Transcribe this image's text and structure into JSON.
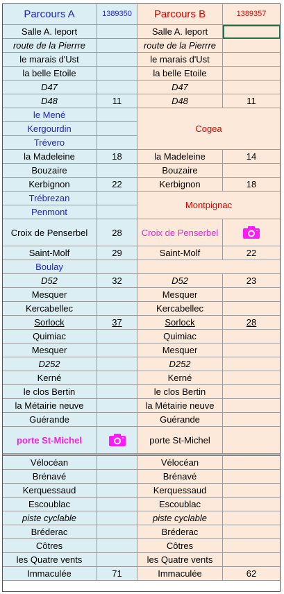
{
  "title": "Parcours A / Parcours B",
  "colors": {
    "parcours_a_bg": "#dbeef4",
    "parcours_b_bg": "#fde9d9",
    "blue_text": "#1f25c8",
    "red_text": "#e00000",
    "magenta_text": "#ee22dd",
    "camera_icon": "#ff1aff"
  },
  "header": {
    "a_title": "Parcours A",
    "a_id": "1389350",
    "b_title": "Parcours B",
    "b_id": "1389357"
  },
  "rows": [
    {
      "a_name": "Salle A. leport",
      "a_km": "",
      "b_name": "Salle A. leport",
      "b_km": "",
      "b_selected": true
    },
    {
      "a_name": "route de la Pierrre",
      "a_km": "",
      "b_name": "route de la Pierrre",
      "b_km": "",
      "italic": true
    },
    {
      "a_name": "le marais d'Ust",
      "a_km": "",
      "b_name": "le marais d'Ust",
      "b_km": ""
    },
    {
      "a_name": "la belle Etoile",
      "a_km": "",
      "b_name": "la belle Etoile",
      "b_km": ""
    },
    {
      "a_name": "D47",
      "a_km": "",
      "b_name": "D47",
      "b_km": "",
      "italic": true
    },
    {
      "a_name": "D48",
      "a_km": "11",
      "b_name": "D48",
      "b_km": "11",
      "italic": true
    },
    {
      "a_name": "le Mené",
      "a_km": "",
      "a_style": "blue"
    },
    {
      "a_name": "Kergourdin",
      "a_km": "",
      "a_style": "blue"
    },
    {
      "a_name": "Trévero",
      "a_km": "",
      "a_style": "blue"
    },
    {
      "a_name": "la Madeleine",
      "a_km": "18",
      "b_name": "la Madeleine",
      "b_km": "14"
    },
    {
      "a_name": "Bouzaire",
      "a_km": "",
      "b_name": "Bouzaire",
      "b_km": ""
    },
    {
      "a_name": "Kerbignon",
      "a_km": "22",
      "b_name": "Kerbignon",
      "b_km": "18"
    },
    {
      "a_name": "Trébrezan",
      "a_km": "",
      "a_style": "blue"
    },
    {
      "a_name": "Penmont",
      "a_km": "",
      "a_style": "blue"
    },
    {
      "a_name": "Croix de Penserbel",
      "a_km": "28",
      "b_name": "Croix de Penserbel",
      "b_style": "mag",
      "b_icon": "camera-icon"
    },
    {
      "a_name": "Saint-Molf",
      "a_km": "29",
      "b_name": "Saint-Molf",
      "b_km": "22"
    },
    {
      "a_name": "Boulay",
      "a_km": "",
      "a_style": "blue"
    },
    {
      "a_name": "D52",
      "a_km": "32",
      "b_name": "D52",
      "b_km": "23",
      "italic": true
    },
    {
      "a_name": "Mesquer",
      "a_km": "",
      "b_name": "Mesquer",
      "b_km": ""
    },
    {
      "a_name": "Kercabellec",
      "a_km": "",
      "b_name": "Kercabellec",
      "b_km": ""
    },
    {
      "a_name": "Sorlock",
      "a_km": "37",
      "b_name": "Sorlock",
      "b_km": "28",
      "underline": true
    },
    {
      "a_name": "Quimiac",
      "a_km": "",
      "b_name": "Quimiac",
      "b_km": ""
    },
    {
      "a_name": "Mesquer",
      "a_km": "",
      "b_name": "Mesquer",
      "b_km": ""
    },
    {
      "a_name": "D252",
      "a_km": "",
      "b_name": "D252",
      "b_km": "",
      "italic": true
    },
    {
      "a_name": "Kerné",
      "a_km": "",
      "b_name": "Kerné",
      "b_km": ""
    },
    {
      "a_name": "le clos Bertin",
      "a_km": "",
      "b_name": "le clos Bertin",
      "b_km": ""
    },
    {
      "a_name": "la Métairie neuve",
      "a_km": "",
      "b_name": "la Métairie neuve",
      "b_km": ""
    },
    {
      "a_name": "Guérande",
      "a_km": "",
      "b_name": "Guérande",
      "b_km": ""
    },
    {
      "a_name": "porte St-Michel",
      "a_style": "mag",
      "a_icon": "camera-icon",
      "b_name": "porte St-Michel",
      "b_km": ""
    },
    {
      "a_name": "Vélocéan",
      "a_km": "",
      "b_name": "Vélocéan",
      "b_km": ""
    },
    {
      "a_name": "Brénavé",
      "a_km": "",
      "b_name": "Brénavé",
      "b_km": ""
    },
    {
      "a_name": "Kerquessaud",
      "a_km": "",
      "b_name": "Kerquessaud",
      "b_km": ""
    },
    {
      "a_name": "Escoublac",
      "a_km": "",
      "b_name": "Escoublac",
      "b_km": ""
    },
    {
      "a_name": "piste cyclable",
      "a_km": "",
      "b_name": "piste cyclable",
      "b_km": "",
      "italic": true
    },
    {
      "a_name": "Bréderac",
      "a_km": "",
      "b_name": "Bréderac",
      "b_km": ""
    },
    {
      "a_name": "Côtres",
      "a_km": "",
      "b_name": "Côtres",
      "b_km": ""
    },
    {
      "a_name": "les Quatre vents",
      "a_km": "",
      "b_name": "les Quatre vents",
      "b_km": ""
    },
    {
      "a_name": "Immaculée",
      "a_km": "71",
      "b_name": "Immaculée",
      "b_km": "62"
    }
  ],
  "merged_b": [
    {
      "label": "Cogea",
      "style": "red",
      "first_row": 6,
      "last_row": 8
    },
    {
      "label": "Montpignac",
      "style": "red",
      "first_row": 12,
      "last_row": 13
    },
    {
      "label": "",
      "first_row": 16,
      "last_row": 16
    }
  ]
}
